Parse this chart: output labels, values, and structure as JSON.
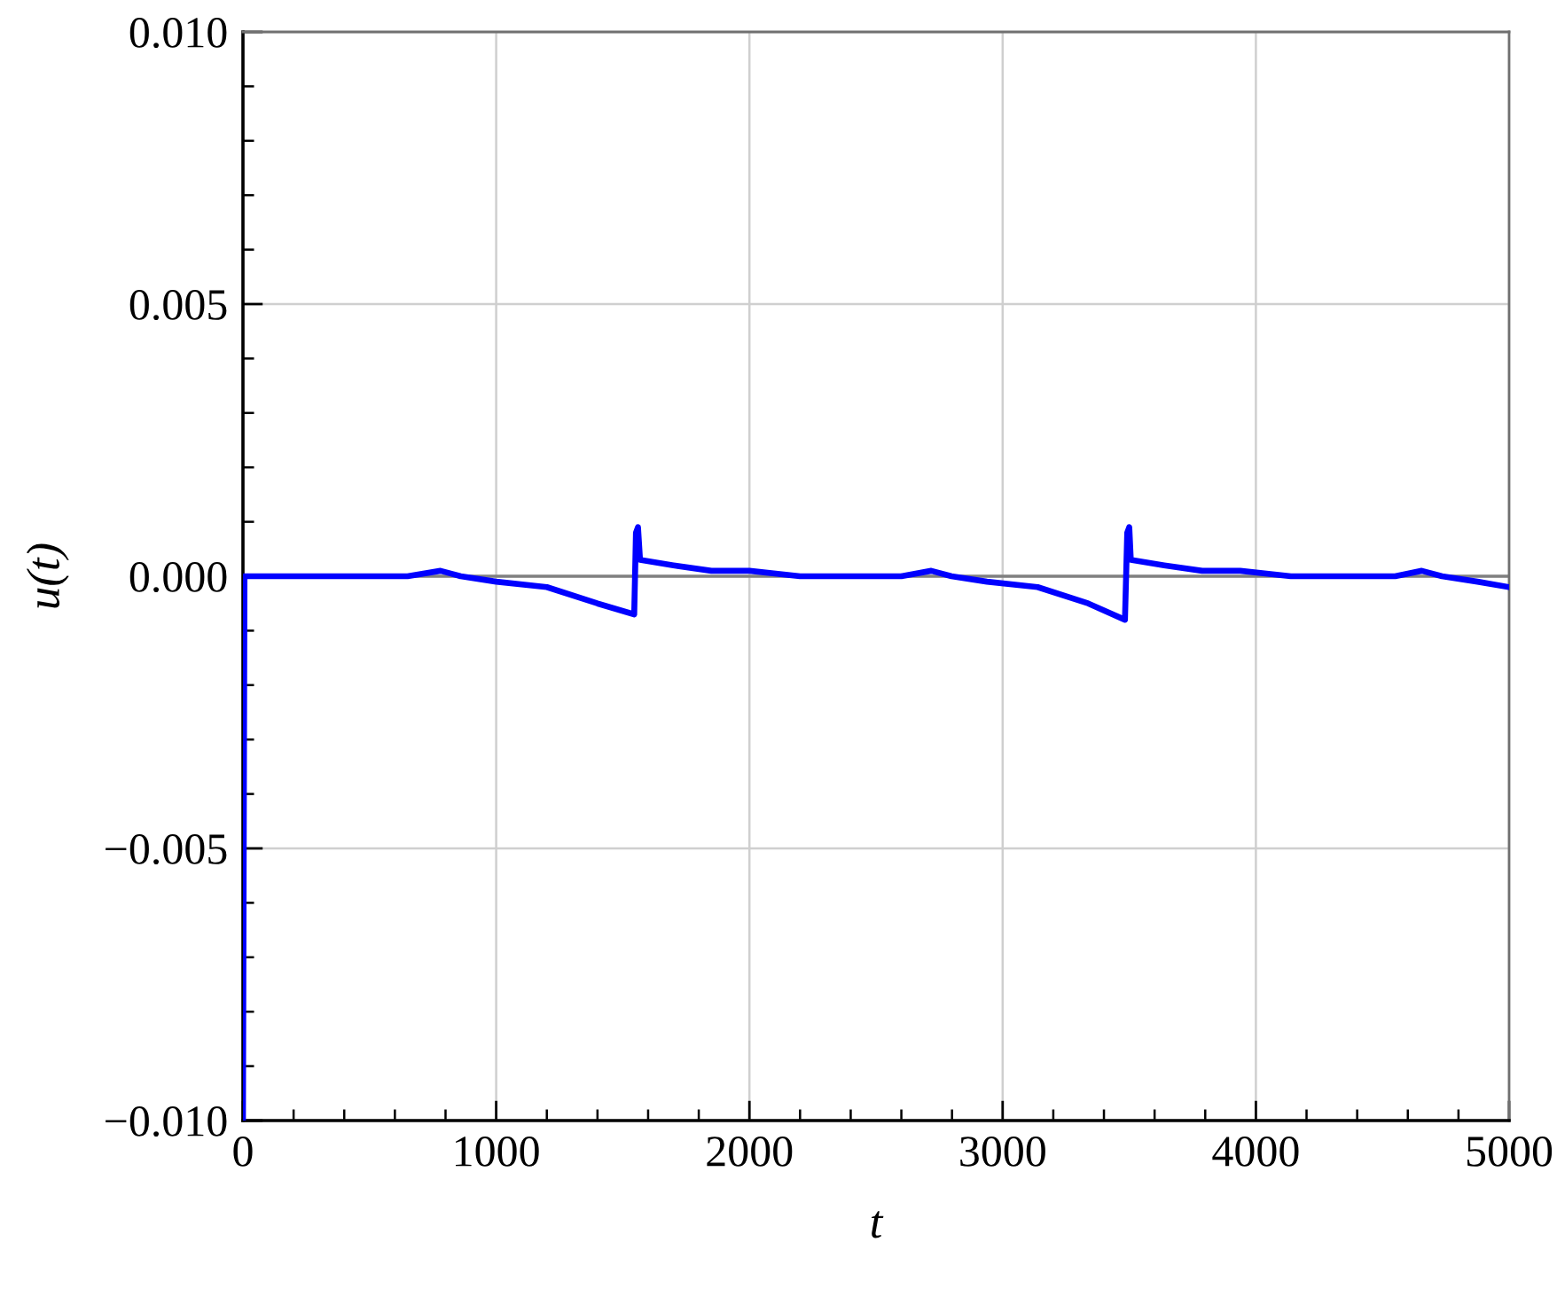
{
  "chart_data": {
    "type": "line",
    "xlabel": "t",
    "ylabel": "u(t)",
    "xlim": [
      0,
      5000
    ],
    "ylim": [
      -0.01,
      0.01
    ],
    "xticks": [
      0,
      1000,
      2000,
      3000,
      4000,
      5000
    ],
    "yticks": [
      {
        "value": -0.01,
        "label": "−0.010"
      },
      {
        "value": -0.005,
        "label": "−0.005"
      },
      {
        "value": 0,
        "label": "0.000"
      },
      {
        "value": 0.005,
        "label": "0.005"
      },
      {
        "value": 0.01,
        "label": "0.010"
      }
    ],
    "grid": true,
    "line_style": "solid",
    "ref_lines": [
      {
        "axis": "y",
        "value": 0,
        "color": "#808080"
      }
    ],
    "series": [
      {
        "color": "#0000ff",
        "x": [
          0,
          6,
          300,
          650,
          780,
          860,
          1000,
          1200,
          1400,
          1545,
          1552,
          1560,
          1568,
          1700,
          1850,
          2000,
          2200,
          2600,
          2718,
          2798,
          2938,
          3138,
          3338,
          3483,
          3492,
          3500,
          3506,
          3638,
          3788,
          3938,
          4138,
          4550,
          4655,
          4735,
          4875,
          5000
        ],
        "values": [
          -0.01,
          0.0,
          0.0,
          0.0,
          0.0001,
          0.0,
          -0.0001,
          -0.0002,
          -0.0005,
          -0.0007,
          0.0008,
          0.0009,
          0.0003,
          0.0002,
          0.0001,
          0.0001,
          0.0,
          0.0,
          0.0001,
          0.0,
          -0.0001,
          -0.0002,
          -0.0005,
          -0.0008,
          0.0008,
          0.0009,
          0.0003,
          0.0002,
          0.0001,
          0.0001,
          0.0,
          0.0,
          0.0001,
          0.0,
          -0.0001,
          -0.0002
        ]
      }
    ]
  }
}
